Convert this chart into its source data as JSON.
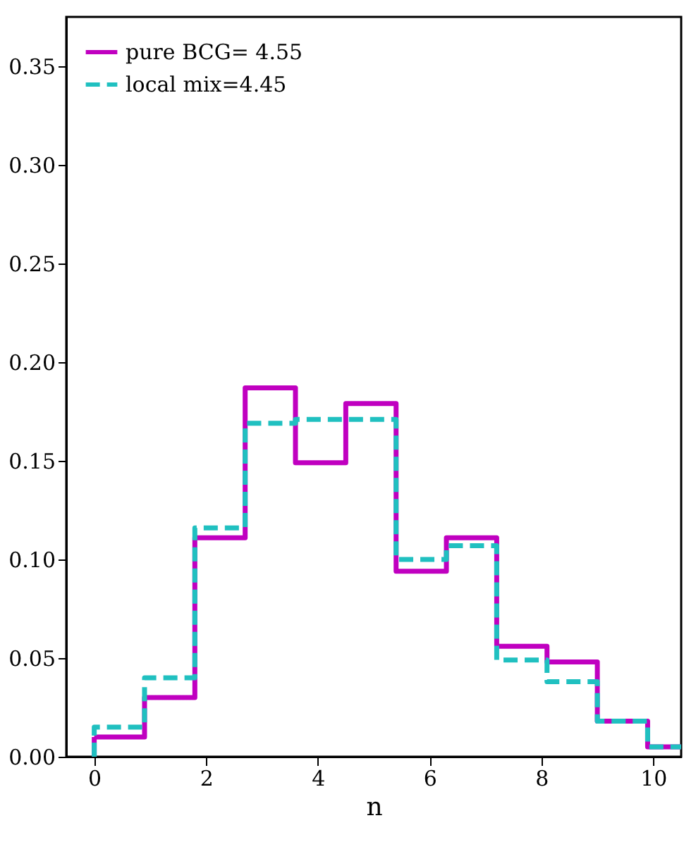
{
  "chart_data": {
    "type": "histogram",
    "xlabel": "n",
    "bins": [
      0,
      0.9,
      1.8,
      2.7,
      3.6,
      4.5,
      5.4,
      6.3,
      7.2,
      8.1,
      9.0,
      9.9,
      10.8
    ],
    "series": [
      {
        "name": "pure BCG= 4.55",
        "color": "#c000c0",
        "line_style": "solid",
        "values": [
          0.01,
          0.03,
          0.111,
          0.187,
          0.149,
          0.179,
          0.094,
          0.111,
          0.056,
          0.048,
          0.018,
          0.005
        ]
      },
      {
        "name": "local mix=4.45",
        "color": "#20c0c0",
        "line_style": "dashed",
        "values": [
          0.015,
          0.04,
          0.116,
          0.169,
          0.171,
          0.171,
          0.1,
          0.107,
          0.049,
          0.038,
          0.018,
          0.005
        ]
      }
    ],
    "xlim": [
      -0.5,
      10.5
    ],
    "xticks": [
      0,
      2,
      4,
      6,
      8,
      10
    ],
    "ylim": [
      0,
      0.375
    ],
    "yticks": [
      {
        "value": 0,
        "label": "0.00"
      },
      {
        "value": 0.05,
        "label": "0.05"
      },
      {
        "value": 0.1,
        "label": "0.10"
      },
      {
        "value": 0.15,
        "label": "0.15"
      },
      {
        "value": 0.2,
        "label": "0.20"
      },
      {
        "value": 0.25,
        "label": "0.25"
      },
      {
        "value": 0.3,
        "label": "0.30"
      },
      {
        "value": 0.35,
        "label": "0.35"
      }
    ],
    "legend": "top left",
    "grid": false
  }
}
